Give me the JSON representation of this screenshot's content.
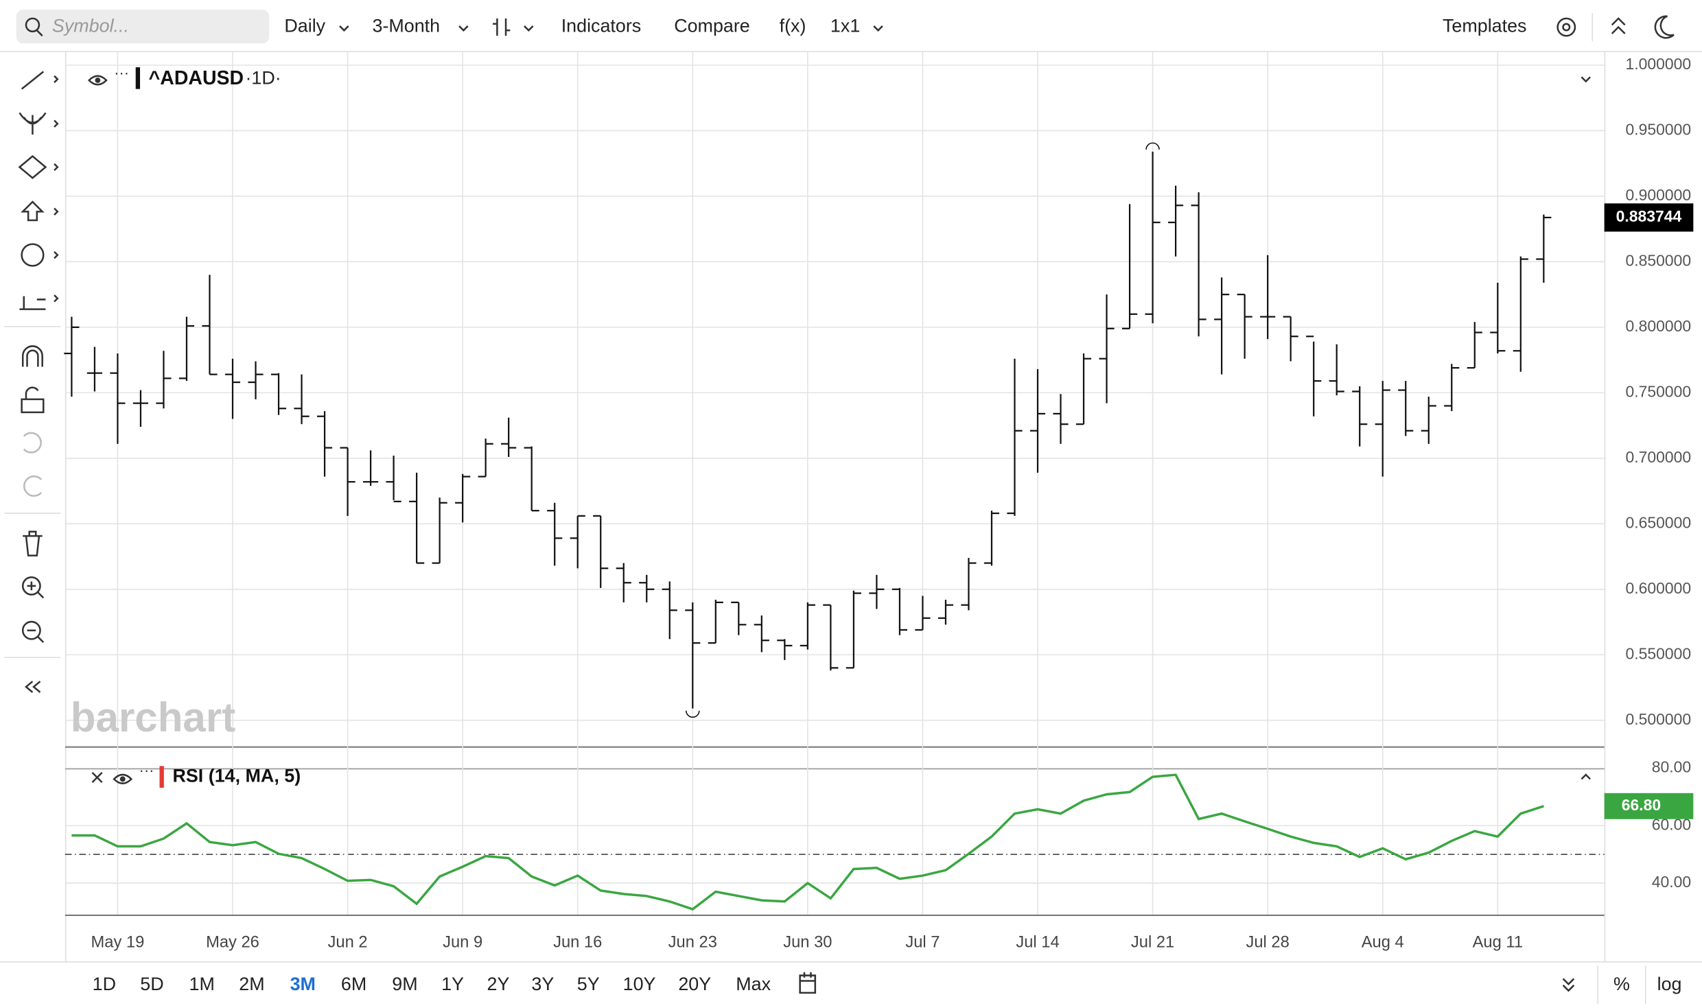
{
  "toolbar": {
    "search_placeholder": "Symbol...",
    "interval": "Daily",
    "period": "3-Month",
    "items": [
      "Indicators",
      "Compare",
      "f(x)",
      "1x1"
    ],
    "templates": "Templates"
  },
  "chart_data": {
    "type": "ohlc",
    "symbol": "^ADAUSD",
    "interval_label": "·1D·",
    "watermark": "barchart",
    "color": "#111111",
    "categories": [
      null,
      null,
      "May 19",
      null,
      null,
      null,
      null,
      "May 26",
      null,
      null,
      null,
      null,
      "Jun 2",
      null,
      null,
      null,
      null,
      "Jun 9",
      null,
      null,
      null,
      null,
      "Jun 16",
      null,
      null,
      null,
      null,
      "Jun 23",
      null,
      null,
      null,
      null,
      "Jun 30",
      null,
      null,
      null,
      null,
      "Jul 7",
      null,
      null,
      null,
      null,
      "Jul 14",
      null,
      null,
      null,
      null,
      "Jul 21",
      null,
      null,
      null,
      null,
      "Jul 28",
      null,
      null,
      null,
      null,
      "Aug 4",
      null,
      null,
      null,
      null,
      "Aug 11",
      null,
      null
    ],
    "open": [
      0.78,
      0.765,
      0.765,
      0.742,
      0.742,
      0.761,
      0.801,
      0.764,
      0.758,
      0.764,
      0.738,
      0.732,
      0.708,
      0.682,
      0.682,
      0.667,
      0.62,
      0.666,
      0.686,
      0.711,
      0.708,
      0.66,
      0.639,
      0.656,
      0.616,
      0.605,
      0.6,
      0.584,
      0.559,
      0.59,
      0.573,
      0.561,
      0.557,
      0.588,
      0.54,
      0.597,
      0.6,
      0.569,
      0.578,
      0.588,
      0.62,
      0.658,
      0.721,
      0.734,
      0.726,
      0.776,
      0.799,
      0.81,
      0.88,
      0.893,
      0.806,
      0.825,
      0.808,
      0.808,
      0.793,
      0.759,
      0.751,
      0.726,
      0.752,
      0.721,
      0.74,
      0.769,
      0.796,
      0.782,
      0.852
    ],
    "high": [
      0.808,
      0.785,
      0.78,
      0.752,
      0.782,
      0.808,
      0.84,
      0.776,
      0.774,
      0.765,
      0.764,
      0.736,
      0.708,
      0.706,
      0.702,
      0.689,
      0.67,
      0.688,
      0.715,
      0.731,
      0.709,
      0.666,
      0.656,
      0.656,
      0.62,
      0.611,
      0.606,
      0.59,
      0.592,
      0.59,
      0.58,
      0.562,
      0.59,
      0.588,
      0.599,
      0.611,
      0.601,
      0.595,
      0.592,
      0.624,
      0.66,
      0.776,
      0.768,
      0.749,
      0.78,
      0.825,
      0.894,
      0.934,
      0.908,
      0.903,
      0.838,
      0.825,
      0.855,
      0.808,
      0.789,
      0.787,
      0.755,
      0.759,
      0.759,
      0.747,
      0.772,
      0.804,
      0.834,
      0.854,
      0.886
    ],
    "low": [
      0.747,
      0.751,
      0.711,
      0.724,
      0.738,
      0.759,
      0.764,
      0.73,
      0.745,
      0.733,
      0.726,
      0.686,
      0.656,
      0.679,
      0.668,
      0.62,
      0.62,
      0.651,
      0.686,
      0.701,
      0.66,
      0.618,
      0.616,
      0.601,
      0.59,
      0.59,
      0.562,
      0.509,
      0.559,
      0.565,
      0.552,
      0.546,
      0.554,
      0.538,
      0.54,
      0.585,
      0.565,
      0.569,
      0.573,
      0.584,
      0.618,
      0.656,
      0.689,
      0.711,
      0.726,
      0.742,
      0.799,
      0.803,
      0.854,
      0.793,
      0.764,
      0.776,
      0.791,
      0.774,
      0.732,
      0.748,
      0.709,
      0.686,
      0.717,
      0.711,
      0.736,
      0.769,
      0.78,
      0.766,
      0.834
    ],
    "close": [
      0.8,
      0.765,
      0.742,
      0.742,
      0.761,
      0.801,
      0.764,
      0.758,
      0.764,
      0.738,
      0.732,
      0.708,
      0.682,
      0.682,
      0.667,
      0.62,
      0.666,
      0.686,
      0.711,
      0.708,
      0.66,
      0.639,
      0.656,
      0.616,
      0.605,
      0.6,
      0.584,
      0.559,
      0.59,
      0.573,
      0.561,
      0.557,
      0.588,
      0.54,
      0.597,
      0.6,
      0.569,
      0.578,
      0.588,
      0.62,
      0.658,
      0.721,
      0.734,
      0.726,
      0.776,
      0.799,
      0.81,
      0.88,
      0.893,
      0.806,
      0.825,
      0.808,
      0.808,
      0.793,
      0.759,
      0.751,
      0.726,
      0.752,
      0.721,
      0.74,
      0.769,
      0.796,
      0.782,
      0.852,
      0.883744
    ],
    "ylim": [
      0.48,
      1.01
    ],
    "yticks": [
      {
        "value": 0.5,
        "label": "0.500000"
      },
      {
        "value": 0.55,
        "label": "0.550000"
      },
      {
        "value": 0.6,
        "label": "0.600000"
      },
      {
        "value": 0.65,
        "label": "0.650000"
      },
      {
        "value": 0.7,
        "label": "0.700000"
      },
      {
        "value": 0.75,
        "label": "0.750000"
      },
      {
        "value": 0.8,
        "label": "0.800000"
      },
      {
        "value": 0.85,
        "label": "0.850000"
      },
      {
        "value": 0.9,
        "label": "0.900000"
      },
      {
        "value": 0.95,
        "label": "0.950000"
      },
      {
        "value": 1,
        "label": "1.000000"
      }
    ],
    "grid": true,
    "rsi": {
      "name": "RSI (14, MA, 5)",
      "color": "#3aa641",
      "ylim": [
        29,
        80
      ],
      "midline": 50,
      "yticks": [
        {
          "value": 40,
          "label": "40.00"
        },
        {
          "value": 60,
          "label": "60.00"
        },
        {
          "value": 80,
          "label": "80.00"
        }
      ],
      "values": [
        56.6,
        56.6,
        52.8,
        52.8,
        55.5,
        60.8,
        54.3,
        53.2,
        54.3,
        50.2,
        48.7,
        44.9,
        40.8,
        41.1,
        38.9,
        32.8,
        42.3,
        45.7,
        49.4,
        48.7,
        42.3,
        39.2,
        42.6,
        37.4,
        36.2,
        35.5,
        33.6,
        30.9,
        37.0,
        35.5,
        34.0,
        33.6,
        40.0,
        34.7,
        44.9,
        45.3,
        41.5,
        42.6,
        44.5,
        50.2,
        56.2,
        64.2,
        65.7,
        64.2,
        68.7,
        70.9,
        71.7,
        77.0,
        77.7,
        62.3,
        64.2,
        61.5,
        58.9,
        56.2,
        54.0,
        52.8,
        49.1,
        52.1,
        48.3,
        50.6,
        54.7,
        58.1,
        56.2,
        64.2,
        66.8
      ],
      "value_labels": [
        null,
        null,
        null,
        null,
        null,
        null,
        null,
        null,
        null,
        null,
        null,
        null,
        null,
        null,
        null,
        null,
        null,
        null,
        null,
        null,
        null,
        null,
        null,
        null,
        null,
        null,
        null,
        null,
        null,
        null,
        null,
        null,
        null,
        null,
        null,
        null,
        null,
        null,
        null,
        null,
        null,
        null,
        null,
        null,
        null,
        null,
        null,
        null,
        null,
        null,
        null,
        null,
        null,
        null,
        null,
        null,
        null,
        null,
        null,
        null,
        null,
        null,
        null,
        null,
        "66.80"
      ]
    }
  },
  "bottom_bar": {
    "ranges": [
      "1D",
      "5D",
      "1M",
      "2M",
      "3M",
      "6M",
      "9M",
      "1Y",
      "2Y",
      "3Y",
      "5Y",
      "10Y",
      "20Y",
      "Max"
    ],
    "selected_range": 4,
    "percent": "%",
    "log": "log"
  }
}
